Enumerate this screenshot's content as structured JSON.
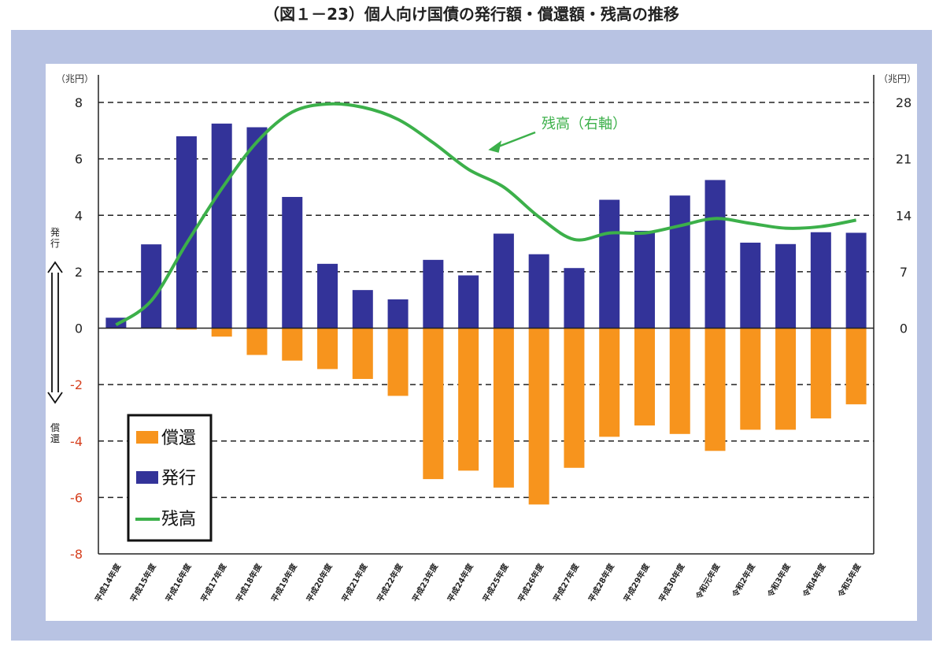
{
  "title": "（図１－23）個人向け国債の発行額・償還額・残高の推移",
  "left_unit": "（兆円）",
  "right_unit": "（兆円）",
  "issue_label": "発行",
  "redemption_label": "償還",
  "annotation": "残高（右軸）",
  "colors": {
    "issue": "#333399",
    "redemption": "#f7941d",
    "balance": "#3cb04a",
    "negative_tick": "#d6401f",
    "frame": "#b8c3e3"
  },
  "chart_data": {
    "type": "bar",
    "categories": [
      "平成14年度",
      "平成15年度",
      "平成16年度",
      "平成17年度",
      "平成18年度",
      "平成19年度",
      "平成20年度",
      "平成21年度",
      "平成22年度",
      "平成23年度",
      "平成24年度",
      "平成25年度",
      "平成26年度",
      "平成27年度",
      "平成28年度",
      "平成29年度",
      "平成30年度",
      "令和元年度",
      "令和2年度",
      "令和3年度",
      "令和4年度",
      "令和5年度"
    ],
    "series": [
      {
        "name": "償還",
        "type": "bar",
        "axis": "left",
        "values": [
          0,
          0,
          -0.05,
          -0.3,
          -0.95,
          -1.15,
          -1.45,
          -1.8,
          -2.4,
          -5.35,
          -5.05,
          -5.65,
          -6.25,
          -4.95,
          -3.85,
          -3.45,
          -3.75,
          -4.35,
          -3.6,
          -3.6,
          -3.2,
          -2.7
        ]
      },
      {
        "name": "発行",
        "type": "bar",
        "axis": "left",
        "values": [
          0.37,
          2.97,
          6.8,
          7.25,
          7.12,
          4.65,
          2.28,
          1.35,
          1.02,
          2.42,
          1.87,
          3.35,
          2.62,
          2.13,
          4.55,
          3.45,
          4.7,
          5.25,
          3.03,
          2.98,
          3.4,
          3.38
        ]
      },
      {
        "name": "残高",
        "type": "line",
        "axis": "right",
        "values": [
          0.4,
          3.4,
          10.5,
          17.3,
          23.1,
          26.8,
          27.8,
          27.4,
          25.9,
          23.0,
          19.7,
          17.5,
          13.8,
          11.0,
          11.8,
          11.8,
          12.7,
          13.6,
          13.0,
          12.4,
          12.6,
          13.4
        ]
      }
    ],
    "y_left": {
      "range": [
        -8,
        8
      ],
      "ticks": [
        -8,
        -6,
        -4,
        -2,
        0,
        2,
        4,
        6,
        8
      ]
    },
    "y_right": {
      "range": [
        0,
        28
      ],
      "ticks": [
        0,
        7,
        14,
        21,
        28
      ]
    },
    "grid": "dashed horizontal",
    "legend_position": "bottom-left"
  }
}
